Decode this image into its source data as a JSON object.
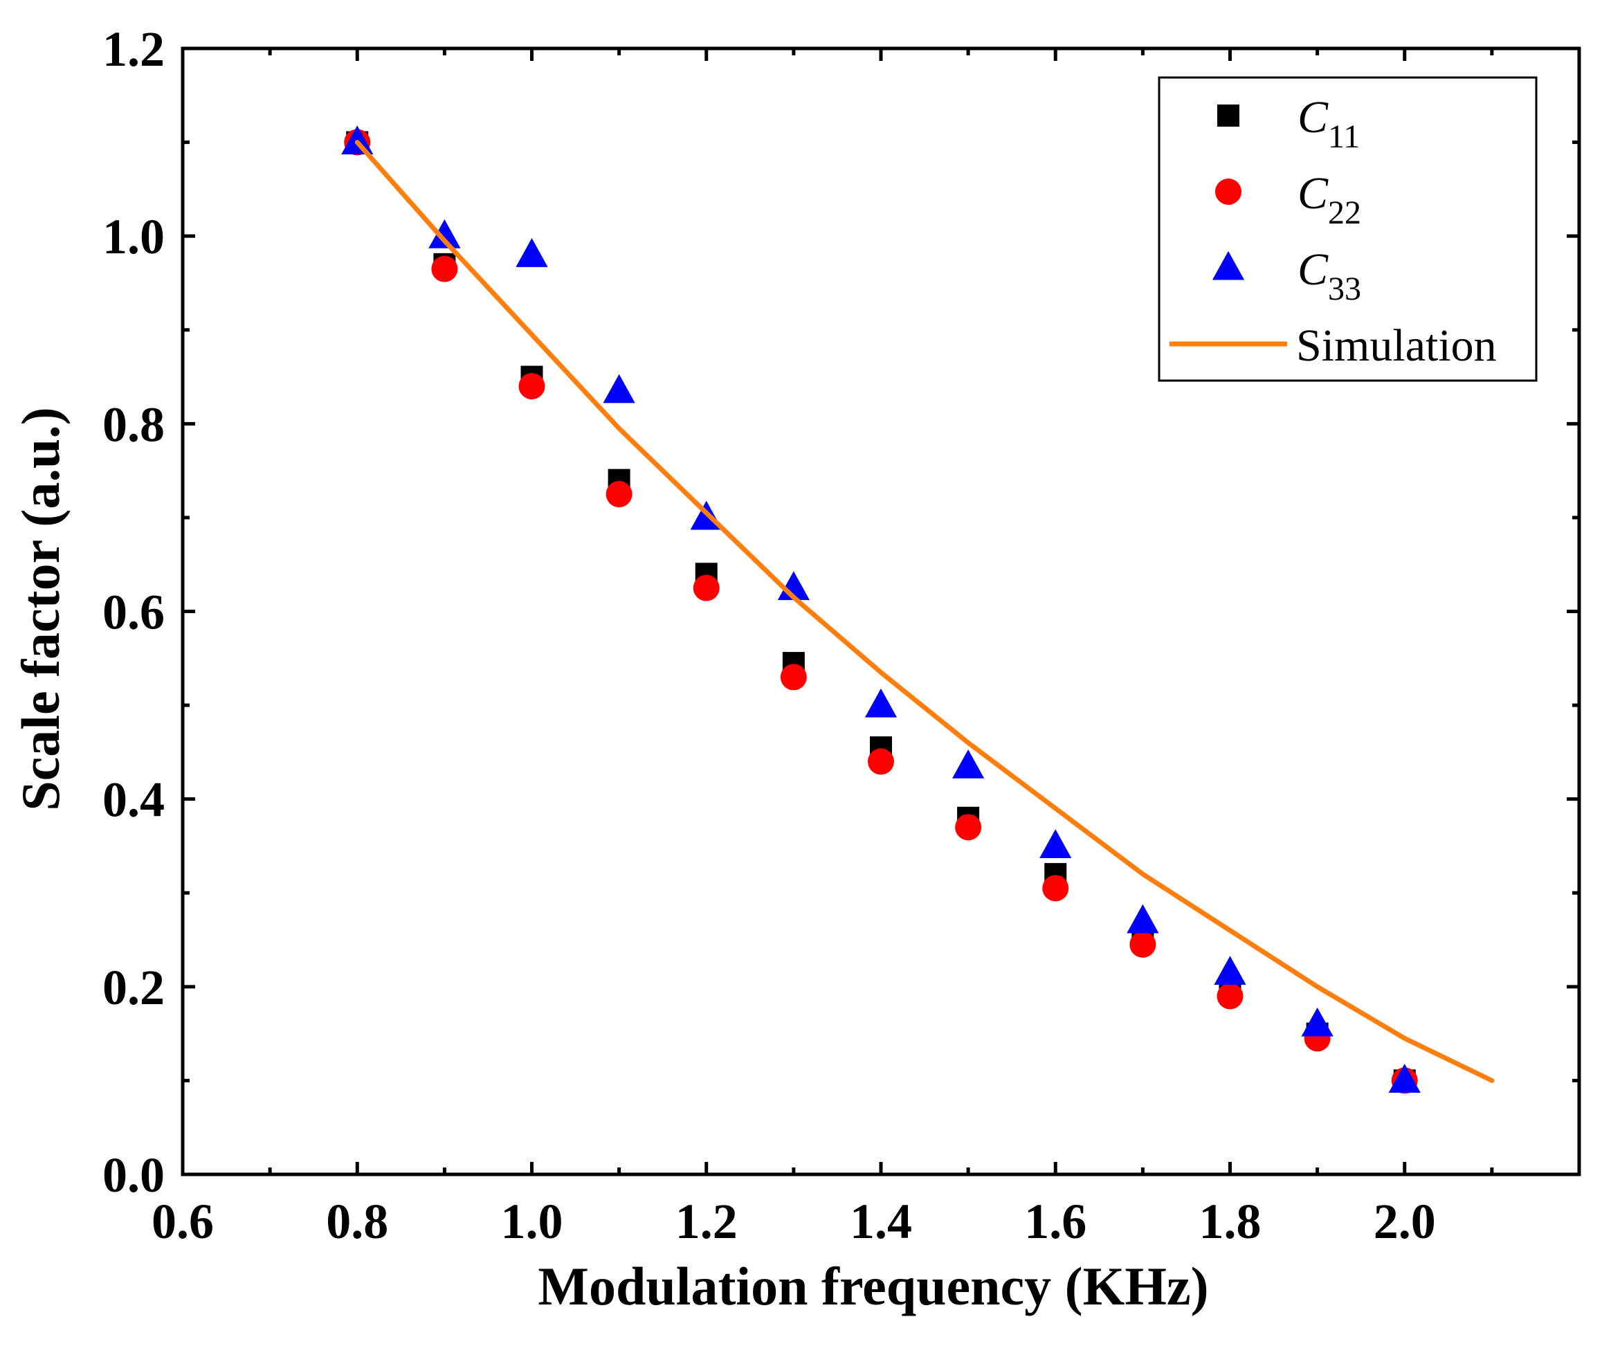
{
  "chart_data": {
    "type": "scatter",
    "title": "",
    "xlabel": "Modulation frequency (KHz)",
    "ylabel": "Scale factor (a.u.)",
    "xlim": [
      0.6,
      2.2
    ],
    "ylim": [
      0.0,
      1.2
    ],
    "grid": false,
    "legend_position": "top-right",
    "x_ticks": [
      "0.6",
      "0.8",
      "1.0",
      "1.2",
      "1.4",
      "1.6",
      "1.8",
      "2.0"
    ],
    "y_ticks": [
      "0.0",
      "0.2",
      "0.4",
      "0.6",
      "0.8",
      "1.0",
      "1.2"
    ],
    "x_tick_values": [
      0.6,
      0.8,
      1.0,
      1.2,
      1.4,
      1.6,
      1.8,
      2.0
    ],
    "y_tick_values": [
      0.0,
      0.2,
      0.4,
      0.6,
      0.8,
      1.0,
      1.2
    ],
    "series": [
      {
        "name": "C11",
        "label_main": "C",
        "label_sub": "11",
        "marker": "square",
        "color": "#000000",
        "x": [
          0.8,
          0.9,
          1.0,
          1.1,
          1.2,
          1.3,
          1.4,
          1.5,
          1.6,
          1.7,
          1.8,
          1.9,
          2.0
        ],
        "y": [
          1.1,
          0.97,
          0.85,
          0.74,
          0.64,
          0.545,
          0.455,
          0.38,
          0.32,
          0.255,
          0.2,
          0.15,
          0.1
        ]
      },
      {
        "name": "C22",
        "label_main": "C",
        "label_sub": "22",
        "marker": "circle",
        "color": "#ff0000",
        "x": [
          0.8,
          0.9,
          1.0,
          1.1,
          1.2,
          1.3,
          1.4,
          1.5,
          1.6,
          1.7,
          1.8,
          1.9,
          2.0
        ],
        "y": [
          1.1,
          0.965,
          0.84,
          0.725,
          0.625,
          0.53,
          0.44,
          0.37,
          0.305,
          0.245,
          0.19,
          0.145,
          0.1
        ]
      },
      {
        "name": "C33",
        "label_main": "C",
        "label_sub": "33",
        "marker": "triangle",
        "color": "#0000ff",
        "x": [
          0.8,
          0.9,
          1.0,
          1.1,
          1.2,
          1.3,
          1.4,
          1.5,
          1.6,
          1.7,
          1.8,
          1.9,
          2.0
        ],
        "y": [
          1.1,
          1.0,
          0.98,
          0.835,
          0.7,
          0.625,
          0.5,
          0.435,
          0.35,
          0.27,
          0.215,
          0.16,
          0.1
        ]
      },
      {
        "name": "Simulation",
        "label_main": "Simulation",
        "label_sub": "",
        "marker": "line",
        "color": "#ff7f0e",
        "x": [
          0.8,
          0.9,
          1.0,
          1.1,
          1.2,
          1.3,
          1.4,
          1.5,
          1.6,
          1.7,
          1.8,
          1.9,
          2.0,
          2.1
        ],
        "y": [
          1.1,
          0.995,
          0.895,
          0.795,
          0.705,
          0.615,
          0.535,
          0.46,
          0.39,
          0.32,
          0.26,
          0.2,
          0.145,
          0.1
        ]
      }
    ]
  }
}
